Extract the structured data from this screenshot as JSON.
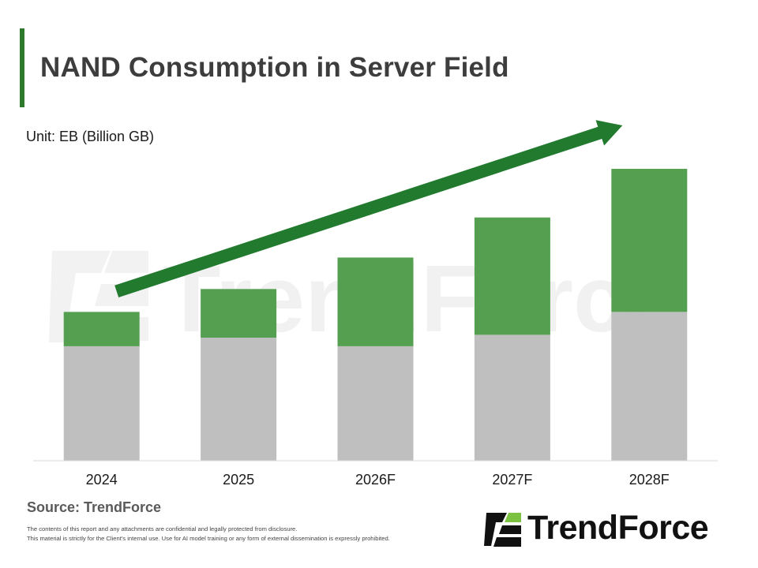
{
  "title": "NAND Consumption in Server Field",
  "unit_label": "Unit: EB (Billion GB)",
  "source": "Source: TrendForce",
  "disclaimer": [
    "The contents of this report and any attachments are confidential and legally protected from disclosure.",
    "This material is strictly for the Client's internal use. Use for AI model training or any form of external dissemination is expressly prohibited."
  ],
  "watermark": "TrendForce",
  "brand": {
    "name": "TrendForce"
  },
  "colors": {
    "accent": "#2d7a2d",
    "series_gray": "#bfbfbf",
    "series_green": "#55a050",
    "arrow": "#217a2e",
    "axis": "#d9d9d9"
  },
  "chart_data": {
    "type": "bar",
    "stacked": true,
    "categories": [
      "2024",
      "2025",
      "2026F",
      "2027F",
      "2028F"
    ],
    "series": [
      {
        "values": [
          40,
          43,
          40,
          44,
          52
        ],
        "color": "#bfbfbf"
      },
      {
        "values": [
          12,
          17,
          31,
          41,
          50
        ],
        "color": "#55a050"
      }
    ],
    "ylim": [
      0,
      102
    ],
    "grid": false,
    "legend": false,
    "annotations": [
      {
        "type": "trend-arrow",
        "direction": "upward"
      }
    ]
  }
}
